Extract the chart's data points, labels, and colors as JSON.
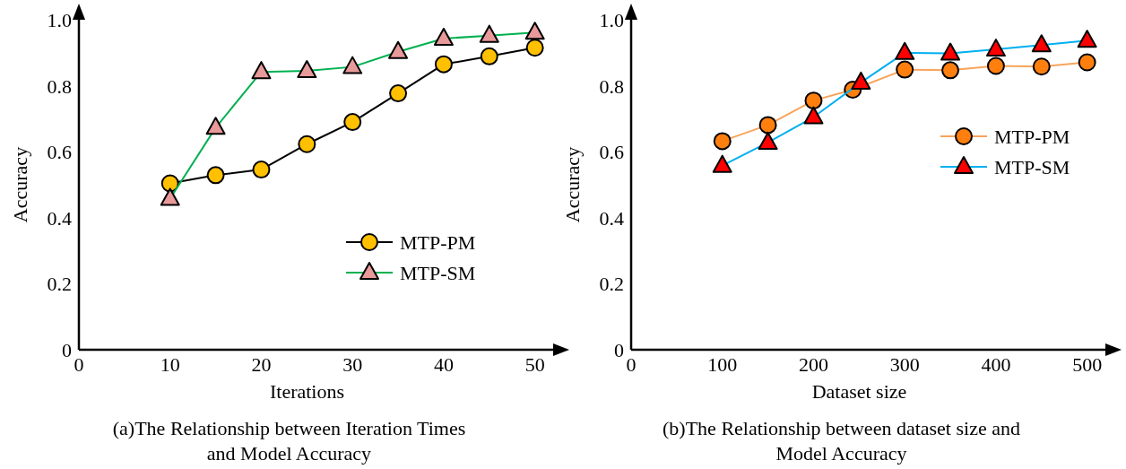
{
  "chart_data": [
    {
      "type": "line",
      "title": "(a)The Relationship between Iteration Times and Model Accuracy",
      "xlabel": "Iterations",
      "ylabel": "Accuracy",
      "x": [
        10,
        15,
        20,
        25,
        30,
        35,
        40,
        45,
        50
      ],
      "xlim": [
        0,
        52
      ],
      "xticks": [
        0,
        10,
        20,
        30,
        40,
        50
      ],
      "ylim": [
        0,
        1.0
      ],
      "yticks": [
        0,
        0.2,
        0.4,
        0.6,
        0.8,
        {
          "value": 1.0,
          "label": "1.0"
        }
      ],
      "grid": false,
      "legend": "bottom right",
      "line_style": "solid",
      "series": [
        {
          "name": "MTP-PM",
          "color": "#000000",
          "marker": "circle",
          "colors": [
            "#ffc000",
            "#ffc000",
            "#ffc000",
            "#ffc000",
            "#ffc000",
            "#ffc000",
            "#ffc000",
            "#ffc000",
            "#ffc000"
          ],
          "values": [
            0.504,
            0.529,
            0.546,
            0.623,
            0.69,
            0.777,
            0.865,
            0.889,
            0.915
          ]
        },
        {
          "name": "MTP-SM",
          "color": "#00b050",
          "marker": "triangle",
          "colors": [
            "#e89a9a",
            "#e89a9a",
            "#e89a9a",
            "#e89a9a",
            "#e89a9a",
            "#e89a9a",
            "#e89a9a",
            "#e89a9a",
            "#e89a9a"
          ],
          "values": [
            0.458,
            0.673,
            0.842,
            0.845,
            0.857,
            0.903,
            0.943,
            0.952,
            0.961
          ]
        }
      ]
    },
    {
      "type": "line",
      "title": "(b)The Relationship between dataset size and Model Accuracy",
      "xlabel": "Dataset size",
      "ylabel": "Accuracy",
      "xlim": [
        0,
        520
      ],
      "xticks": [
        0,
        100,
        200,
        300,
        400,
        500
      ],
      "ylim": [
        0,
        1.0
      ],
      "yticks": [
        0,
        0.2,
        0.4,
        0.6,
        0.8,
        {
          "value": 1.0,
          "label": "1.0"
        }
      ],
      "grid": false,
      "legend": "right",
      "line_style": "solid",
      "series": [
        {
          "name": "MTP-PM",
          "color": "#f8a45c",
          "marker": "circle",
          "x": [
            100,
            150,
            200,
            243,
            300,
            350,
            400,
            450,
            500
          ],
          "colors": [
            "#ff7f0e",
            "#ff7f0e",
            "#ff7f0e",
            "#ff7f0e",
            "#ff7f0e",
            "#ff7f0e",
            "#ff7f0e",
            "#ff7f0e",
            "#ff7f0e"
          ],
          "values": [
            0.632,
            0.681,
            0.755,
            0.788,
            0.849,
            0.847,
            0.86,
            0.858,
            0.871
          ]
        },
        {
          "name": "MTP-SM",
          "color": "#00b0f0",
          "marker": "triangle",
          "x": [
            100,
            150,
            200,
            252,
            300,
            350,
            400,
            450,
            500
          ],
          "colors": [
            "#ff0000",
            "#ff0000",
            "#ff0000",
            "#ff0000",
            "#ff0000",
            "#ff0000",
            "#ff0000",
            "#ff0000",
            "#ff0000"
          ],
          "values": [
            0.558,
            0.628,
            0.705,
            0.81,
            0.9,
            0.898,
            0.91,
            0.923,
            0.937
          ]
        }
      ]
    }
  ]
}
